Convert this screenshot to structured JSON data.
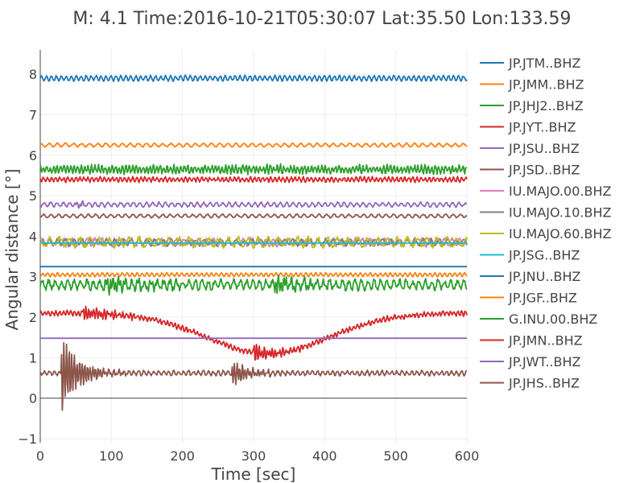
{
  "chart_data": {
    "type": "line",
    "title": "M: 4.1 Time:2016-10-21T05:30:07 Lat:35.50 Lon:133.59",
    "xlabel": "Time [sec]",
    "ylabel": "Angular distance [°]",
    "xlim": [
      0,
      600
    ],
    "ylim": [
      -1.1,
      8.6
    ],
    "xticks": [
      0,
      100,
      200,
      300,
      400,
      500,
      600
    ],
    "yticks": [
      -1,
      0,
      1,
      2,
      3,
      4,
      5,
      6,
      7,
      8
    ],
    "grid": true,
    "legend_position": "right",
    "series": [
      {
        "name": "JP.JTM..BHZ",
        "color": "#1f77b4",
        "offset": 7.9,
        "amp": 0.06,
        "freq": 0.9,
        "noise": 0.3,
        "events": []
      },
      {
        "name": "JP.JMM..BHZ",
        "color": "#ff7f0e",
        "offset": 6.25,
        "amp": 0.04,
        "freq": 0.55,
        "noise": 0.3,
        "events": []
      },
      {
        "name": "JP.JHJ2..BHZ",
        "color": "#2ca02c",
        "offset": 5.65,
        "amp": 0.08,
        "freq": 1.3,
        "noise": 0.6,
        "events": [
          {
            "t": 290,
            "a": 0.06,
            "d": 30
          }
        ]
      },
      {
        "name": "JP.JYT..BHZ",
        "color": "#d62728",
        "offset": 5.4,
        "amp": 0.05,
        "freq": 1.1,
        "noise": 0.5,
        "events": []
      },
      {
        "name": "JP.JSU..BHZ",
        "color": "#9467bd",
        "offset": 4.78,
        "amp": 0.05,
        "freq": 0.7,
        "noise": 0.4,
        "events": [
          {
            "t": 50,
            "a": 0.06,
            "d": 20
          }
        ]
      },
      {
        "name": "JP.JSD..BHZ",
        "color": "#8c564b",
        "offset": 4.5,
        "amp": 0.04,
        "freq": 0.6,
        "noise": 0.3,
        "events": []
      },
      {
        "name": "IU.MAJO.00.BHZ",
        "color": "#e377c2",
        "offset": 3.85,
        "amp": 0.08,
        "freq": 0.6,
        "noise": 0.5,
        "events": []
      },
      {
        "name": "IU.MAJO.10.BHZ",
        "color": "#7f7f7f",
        "offset": 3.85,
        "amp": 0.07,
        "freq": 0.55,
        "noise": 0.5,
        "events": []
      },
      {
        "name": "IU.MAJO.60.BHZ",
        "color": "#bcbd22",
        "offset": 3.85,
        "amp": 0.1,
        "freq": 0.45,
        "noise": 0.5,
        "events": []
      },
      {
        "name": "JP.JSG..BHZ",
        "color": "#17becf",
        "offset": 3.83,
        "amp": 0.0,
        "freq": 0.5,
        "noise": 0.0,
        "events": []
      },
      {
        "name": "JP.JNU..BHZ",
        "color": "#1f77b4",
        "offset": 3.25,
        "amp": 0.0,
        "freq": 0.5,
        "noise": 0.0,
        "events": []
      },
      {
        "name": "JP.JGF..BHZ",
        "color": "#ff7f0e",
        "offset": 3.05,
        "amp": 0.04,
        "freq": 0.9,
        "noise": 0.3,
        "events": []
      },
      {
        "name": "G.INU.00.BHZ",
        "color": "#2ca02c",
        "offset": 2.8,
        "amp": 0.1,
        "freq": 0.7,
        "noise": 0.6,
        "events": [
          {
            "t": 90,
            "a": 0.18,
            "d": 60
          },
          {
            "t": 330,
            "a": 0.22,
            "d": 35
          }
        ]
      },
      {
        "name": "JP.JMN..BHZ",
        "color": "#d62728",
        "offset": 2.1,
        "amp": 0.05,
        "freq": 1.2,
        "noise": 0.6,
        "events": [
          {
            "t": 60,
            "a": 0.2,
            "d": 40
          },
          {
            "t": 300,
            "a": 0.25,
            "d": 30
          }
        ],
        "dip": {
          "center": 320,
          "depth": 1.0,
          "width": 120
        }
      },
      {
        "name": "JP.JWT..BHZ",
        "color": "#9467bd",
        "offset": 1.48,
        "amp": 0.0,
        "freq": 0.5,
        "noise": 0.0,
        "events": []
      },
      {
        "name": "JP.JHS..BHZ",
        "color": "#8c564b",
        "offset": 0.62,
        "amp": 0.05,
        "freq": 0.9,
        "noise": 0.5,
        "events": [
          {
            "t": 30,
            "a": 1.1,
            "d": 25
          },
          {
            "t": 270,
            "a": 0.35,
            "d": 25
          }
        ]
      }
    ]
  }
}
